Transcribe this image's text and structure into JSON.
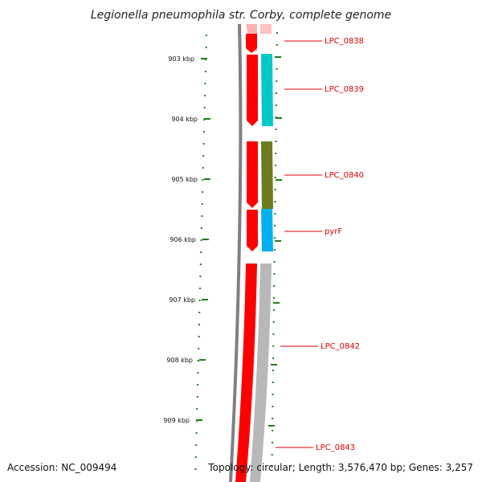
{
  "title": "Legionella pneumophila str. Corby, complete genome",
  "footer": {
    "accession": "Accession: NC_009494",
    "topology": "Topology: circular; Length: 3,576,470 bp; Genes: 3,257"
  },
  "ruler": {
    "labels": [
      "903 kbp",
      "904 kbp",
      "905 kbp",
      "906 kbp",
      "907 kbp",
      "908 kbp",
      "909 kbp"
    ]
  },
  "colors": {
    "backbone": "#808080",
    "forward_strand": "#ff0000",
    "tick": "#1a7f1a",
    "label": "#e00000",
    "teal": "#00c8c8",
    "olive": "#6b7d1e",
    "blue": "#00b0f0",
    "gray": "#b8b8b8"
  },
  "genes": [
    {
      "name": "LPC_0838",
      "color": "pink"
    },
    {
      "name": "LPC_0839",
      "color": "teal"
    },
    {
      "name": "LPC_0840",
      "color": "olive"
    },
    {
      "name": "pyrF",
      "color": "blue"
    },
    {
      "name": "LPC_0842",
      "color": "gray"
    },
    {
      "name": "LPC_0843",
      "color": "gray"
    }
  ]
}
